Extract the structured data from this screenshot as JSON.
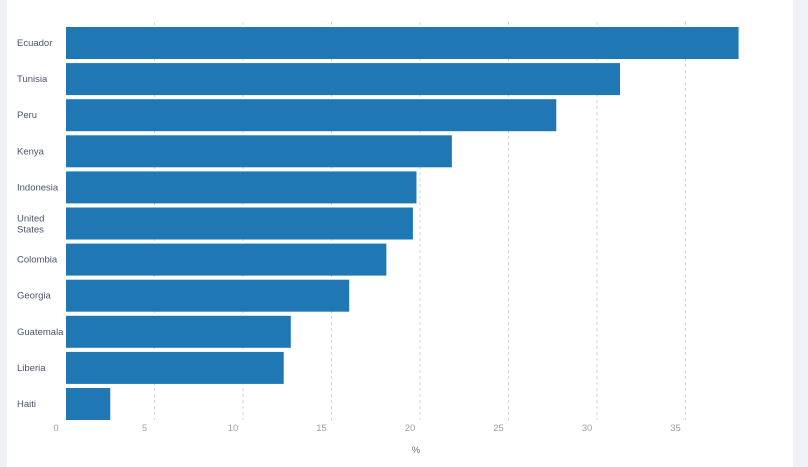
{
  "chart_data": {
    "type": "bar",
    "orientation": "horizontal",
    "title": "",
    "xlabel": "%",
    "ylabel": "",
    "xlim": [
      0,
      40
    ],
    "xticks": [
      0,
      5,
      10,
      15,
      20,
      25,
      30,
      35
    ],
    "grid": true,
    "legend": "none",
    "bar_color": "#1f77b4",
    "categories": [
      "Ecuador",
      "Tunisia",
      "Peru",
      "Kenya",
      "Indonesia",
      "United States",
      "Colombia",
      "Georgia",
      "Guatemala",
      "Liberia",
      "Haiti"
    ],
    "category_lines": [
      [
        "Ecuador"
      ],
      [
        "Tunisia"
      ],
      [
        "Peru"
      ],
      [
        "Kenya"
      ],
      [
        "Indonesia"
      ],
      [
        "United",
        "States"
      ],
      [
        "Colombia"
      ],
      [
        "Georgia"
      ],
      [
        "Guatemala"
      ],
      [
        "Liberia"
      ],
      [
        "Haiti"
      ]
    ],
    "values": [
      38.0,
      31.3,
      27.7,
      21.8,
      19.8,
      19.6,
      18.1,
      16.0,
      12.7,
      12.3,
      2.5
    ]
  }
}
